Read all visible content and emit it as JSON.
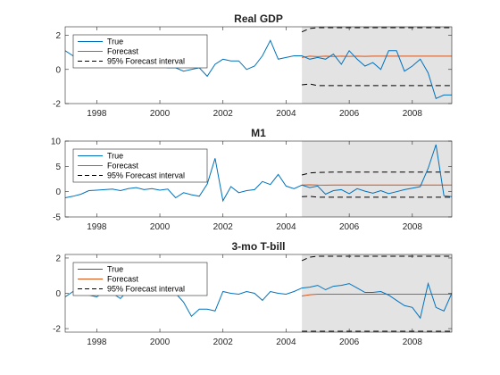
{
  "colors": {
    "true": "#0072BD",
    "forecast": "#D95319",
    "interval": "#000000",
    "shade": "#E3E3E3",
    "axis": "#262626"
  },
  "chart_data": [
    {
      "type": "line",
      "title": "Real GDP",
      "xlim": [
        1997.0,
        2009.25
      ],
      "ylim": [
        -2,
        2.5
      ],
      "xticks": [
        "1998",
        "2000",
        "2002",
        "2004",
        "2006",
        "2008"
      ],
      "yticks": [
        "-2",
        "0",
        "2"
      ],
      "shade": [
        2004.5,
        2009.25
      ],
      "legend": {
        "position": "top-left",
        "entries": [
          "True",
          "Forecast",
          "95% Forecast interval"
        ]
      },
      "series": [
        {
          "name": "True",
          "x": [
            1997.0,
            1997.25,
            1997.5,
            1997.75,
            1998.0,
            1998.25,
            1998.5,
            1998.75,
            1999.0,
            1999.25,
            1999.5,
            1999.75,
            2000.0,
            2000.25,
            2000.5,
            2000.75,
            2001.0,
            2001.25,
            2001.5,
            2001.75,
            2002.0,
            2002.25,
            2002.5,
            2002.75,
            2003.0,
            2003.25,
            2003.5,
            2003.75,
            2004.0,
            2004.25,
            2004.5,
            2004.75,
            2005.0,
            2005.25,
            2005.5,
            2005.75,
            2006.0,
            2006.25,
            2006.5,
            2006.75,
            2007.0,
            2007.25,
            2007.5,
            2007.75,
            2008.0,
            2008.25,
            2008.5,
            2008.75,
            2009.0,
            2009.25
          ],
          "y": [
            1.1,
            0.8,
            0.9,
            0.6,
            0.3,
            0.5,
            0.8,
            0.9,
            0.7,
            0.5,
            0.6,
            0.4,
            0.2,
            0.1,
            0.1,
            -0.1,
            0.0,
            0.1,
            -0.4,
            0.3,
            0.6,
            0.5,
            0.5,
            0.0,
            0.2,
            0.8,
            1.7,
            0.6,
            0.7,
            0.8,
            0.8,
            0.6,
            0.7,
            0.6,
            0.9,
            0.3,
            1.1,
            0.6,
            0.2,
            0.4,
            0.0,
            1.1,
            1.1,
            -0.1,
            0.2,
            0.6,
            -0.2,
            -1.7,
            -1.5,
            -1.5
          ]
        },
        {
          "name": "Forecast",
          "x": [
            2004.5,
            2004.75,
            2005.0,
            2005.25,
            2005.5,
            2005.75,
            2006.0,
            2006.25,
            2006.5,
            2006.75,
            2007.0,
            2007.25,
            2007.5,
            2007.75,
            2008.0,
            2008.25,
            2008.5,
            2008.75,
            2009.0,
            2009.25
          ],
          "y": [
            0.7,
            0.78,
            0.75,
            0.78,
            0.76,
            0.78,
            0.77,
            0.78,
            0.77,
            0.78,
            0.78,
            0.78,
            0.78,
            0.78,
            0.78,
            0.78,
            0.78,
            0.78,
            0.78,
            0.78
          ]
        },
        {
          "name": "95% Forecast interval",
          "x": [
            2004.5,
            2004.75,
            2005.0,
            2005.5,
            2006.0,
            2007.0,
            2008.0,
            2009.25
          ],
          "upper": [
            2.2,
            2.4,
            2.45,
            2.45,
            2.45,
            2.45,
            2.45,
            2.45
          ],
          "lower": [
            -0.9,
            -0.85,
            -0.95,
            -0.95,
            -0.95,
            -0.95,
            -0.95,
            -0.95
          ]
        }
      ]
    },
    {
      "type": "line",
      "title": "M1",
      "xlim": [
        1997.0,
        2009.25
      ],
      "ylim": [
        -5,
        10
      ],
      "xticks": [
        "1998",
        "2000",
        "2002",
        "2004",
        "2006",
        "2008"
      ],
      "yticks": [
        "-5",
        "0",
        "5",
        "10"
      ],
      "shade": [
        2004.5,
        2009.25
      ],
      "legend": {
        "position": "top-left",
        "entries": [
          "True",
          "Forecast",
          "95% Forecast interval"
        ]
      },
      "series": [
        {
          "name": "True",
          "x": [
            1997.0,
            1997.25,
            1997.5,
            1997.75,
            1998.0,
            1998.25,
            1998.5,
            1998.75,
            1999.0,
            1999.25,
            1999.5,
            1999.75,
            2000.0,
            2000.25,
            2000.5,
            2000.75,
            2001.0,
            2001.25,
            2001.5,
            2001.75,
            2002.0,
            2002.25,
            2002.5,
            2002.75,
            2003.0,
            2003.25,
            2003.5,
            2003.75,
            2004.0,
            2004.25,
            2004.5,
            2004.75,
            2005.0,
            2005.25,
            2005.5,
            2005.75,
            2006.0,
            2006.25,
            2006.5,
            2006.75,
            2007.0,
            2007.25,
            2007.5,
            2007.75,
            2008.0,
            2008.25,
            2008.5,
            2008.75,
            2009.0,
            2009.25
          ],
          "y": [
            -1.2,
            -0.9,
            -0.5,
            0.2,
            0.3,
            0.4,
            0.5,
            0.2,
            0.6,
            0.8,
            0.4,
            0.6,
            0.3,
            0.5,
            -1.2,
            -0.2,
            -0.6,
            -0.9,
            1.5,
            6.6,
            -1.8,
            1.0,
            -0.2,
            0.2,
            0.4,
            2.0,
            1.4,
            3.4,
            1.1,
            0.6,
            1.3,
            0.8,
            1.1,
            -0.5,
            0.2,
            0.4,
            -0.4,
            0.6,
            0.1,
            -0.3,
            0.2,
            -0.4,
            0.0,
            0.4,
            0.7,
            1.0,
            4.6,
            9.3,
            -0.8,
            -1.0
          ]
        },
        {
          "name": "Forecast",
          "x": [
            2004.5,
            2004.75,
            2005.0,
            2005.25,
            2005.5,
            2006.0,
            2006.5,
            2007.0,
            2007.5,
            2008.0,
            2008.5,
            2009.0,
            2009.25
          ],
          "y": [
            1.3,
            1.35,
            1.3,
            1.28,
            1.3,
            1.3,
            1.3,
            1.3,
            1.3,
            1.3,
            1.3,
            1.3,
            1.3
          ]
        },
        {
          "name": "95% Forecast interval",
          "x": [
            2004.5,
            2004.75,
            2005.0,
            2005.5,
            2006.0,
            2007.0,
            2008.0,
            2009.25
          ],
          "upper": [
            3.3,
            3.7,
            3.8,
            3.85,
            3.85,
            3.85,
            3.85,
            3.85
          ],
          "lower": [
            -1.0,
            -0.9,
            -1.1,
            -1.1,
            -1.1,
            -1.1,
            -1.1,
            -1.1
          ]
        }
      ]
    },
    {
      "type": "line",
      "title": "3-mo T-bill",
      "xlim": [
        1997.0,
        2009.25
      ],
      "ylim": [
        -2.2,
        2.2
      ],
      "xticks": [
        "1998",
        "2000",
        "2002",
        "2004",
        "2006",
        "2008"
      ],
      "yticks": [
        "-2",
        "0",
        "2"
      ],
      "shade": [
        2004.5,
        2009.25
      ],
      "legend": {
        "position": "top-left",
        "entries": [
          "True",
          "Forecast",
          "95% Forecast interval"
        ]
      },
      "series": [
        {
          "name": "True",
          "x": [
            1997.0,
            1997.25,
            1997.5,
            1997.75,
            1998.0,
            1998.25,
            1998.5,
            1998.75,
            1999.0,
            1999.25,
            1999.5,
            1999.75,
            2000.0,
            2000.25,
            2000.5,
            2000.75,
            2001.0,
            2001.25,
            2001.5,
            2001.75,
            2002.0,
            2002.25,
            2002.5,
            2002.75,
            2003.0,
            2003.25,
            2003.5,
            2003.75,
            2004.0,
            2004.25,
            2004.5,
            2004.75,
            2005.0,
            2005.25,
            2005.5,
            2005.75,
            2006.0,
            2006.25,
            2006.5,
            2006.75,
            2007.0,
            2007.25,
            2007.5,
            2007.75,
            2008.0,
            2008.25,
            2008.5,
            2008.75,
            2009.0,
            2009.25
          ],
          "y": [
            -0.2,
            0.1,
            0.05,
            -0.1,
            -0.2,
            0.1,
            0.0,
            -0.3,
            0.2,
            0.3,
            0.1,
            0.2,
            0.3,
            0.1,
            0.0,
            -0.5,
            -1.3,
            -0.9,
            -0.9,
            -1.0,
            0.1,
            0.0,
            -0.05,
            0.1,
            0.0,
            -0.4,
            0.1,
            0.0,
            -0.05,
            0.1,
            0.3,
            0.35,
            0.45,
            0.2,
            0.4,
            0.45,
            0.55,
            0.3,
            0.05,
            0.05,
            0.1,
            -0.1,
            -0.4,
            -0.7,
            -0.8,
            -1.4,
            0.55,
            -0.8,
            -1.0,
            0.0
          ]
        },
        {
          "name": "Forecast",
          "x": [
            2004.5,
            2004.75,
            2005.0,
            2005.25,
            2005.5,
            2006.0,
            2006.5,
            2007.0,
            2007.5,
            2008.0,
            2008.5,
            2009.0,
            2009.25
          ],
          "y": [
            -0.15,
            -0.08,
            -0.05,
            -0.05,
            -0.05,
            -0.05,
            -0.05,
            -0.05,
            -0.05,
            -0.05,
            -0.05,
            -0.05,
            -0.05
          ]
        },
        {
          "name": "95% Forecast interval",
          "x": [
            2004.5,
            2004.75,
            2005.0,
            2005.5,
            2006.0,
            2007.0,
            2008.0,
            2009.25
          ],
          "upper": [
            1.85,
            2.05,
            2.1,
            2.1,
            2.1,
            2.1,
            2.1,
            2.1
          ],
          "lower": [
            -2.15,
            -2.15,
            -2.15,
            -2.15,
            -2.15,
            -2.15,
            -2.15,
            -2.15
          ]
        }
      ]
    }
  ]
}
